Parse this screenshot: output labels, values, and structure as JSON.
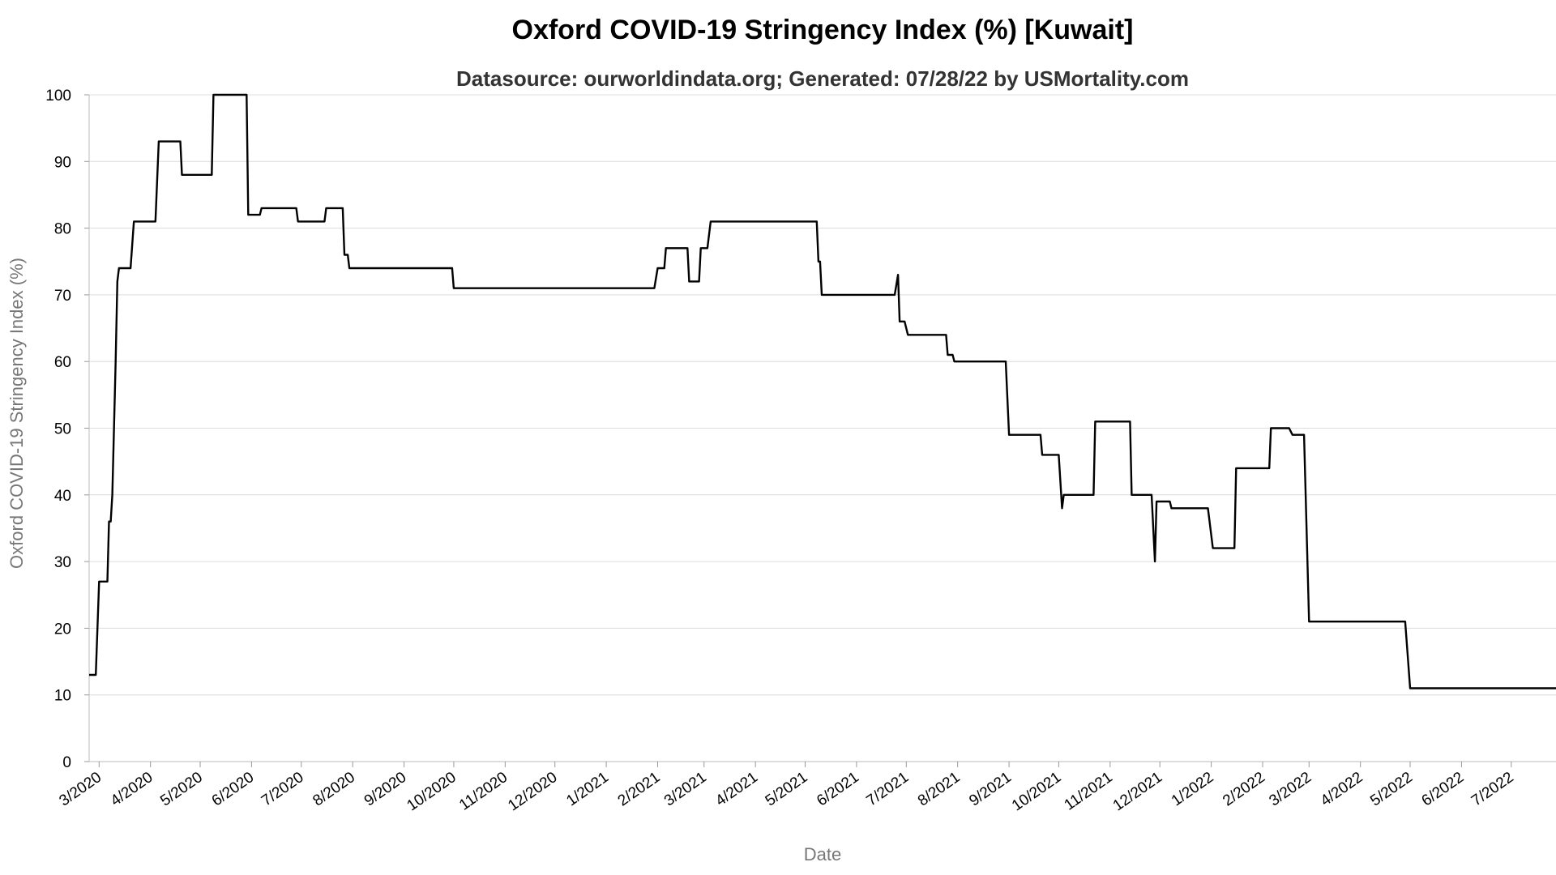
{
  "chart_data": {
    "type": "line",
    "title": "Oxford COVID-19 Stringency Index (%) [Kuwait]",
    "subtitle": "Datasource: ourworldindata.org; Generated: 07/28/22 by USMortality.com",
    "xlabel": "Date",
    "ylabel": "Oxford COVID-19 Stringency Index (%)",
    "ylim": [
      0,
      100
    ],
    "yticks": [
      0,
      10,
      20,
      30,
      40,
      50,
      60,
      70,
      80,
      90,
      100
    ],
    "xlim": [
      "2020-02-24",
      "2022-07-28"
    ],
    "xticks": [
      {
        "date": "2020-03-01",
        "label": "3/2020"
      },
      {
        "date": "2020-04-01",
        "label": "4/2020"
      },
      {
        "date": "2020-05-01",
        "label": "5/2020"
      },
      {
        "date": "2020-06-01",
        "label": "6/2020"
      },
      {
        "date": "2020-07-01",
        "label": "7/2020"
      },
      {
        "date": "2020-08-01",
        "label": "8/2020"
      },
      {
        "date": "2020-09-01",
        "label": "9/2020"
      },
      {
        "date": "2020-10-01",
        "label": "10/2020"
      },
      {
        "date": "2020-11-01",
        "label": "11/2020"
      },
      {
        "date": "2020-12-01",
        "label": "12/2020"
      },
      {
        "date": "2021-01-01",
        "label": "1/2021"
      },
      {
        "date": "2021-02-01",
        "label": "2/2021"
      },
      {
        "date": "2021-03-01",
        "label": "3/2021"
      },
      {
        "date": "2021-04-01",
        "label": "4/2021"
      },
      {
        "date": "2021-05-01",
        "label": "5/2021"
      },
      {
        "date": "2021-06-01",
        "label": "6/2021"
      },
      {
        "date": "2021-07-01",
        "label": "7/2021"
      },
      {
        "date": "2021-08-01",
        "label": "8/2021"
      },
      {
        "date": "2021-09-01",
        "label": "9/2021"
      },
      {
        "date": "2021-10-01",
        "label": "10/2021"
      },
      {
        "date": "2021-11-01",
        "label": "11/2021"
      },
      {
        "date": "2021-12-01",
        "label": "12/2021"
      },
      {
        "date": "2022-01-01",
        "label": "1/2022"
      },
      {
        "date": "2022-02-01",
        "label": "2/2022"
      },
      {
        "date": "2022-03-01",
        "label": "3/2022"
      },
      {
        "date": "2022-04-01",
        "label": "4/2022"
      },
      {
        "date": "2022-05-01",
        "label": "5/2022"
      },
      {
        "date": "2022-06-01",
        "label": "6/2022"
      },
      {
        "date": "2022-07-01",
        "label": "7/2022"
      }
    ],
    "grid": true,
    "line_color": "#000000",
    "series": [
      {
        "points": [
          [
            "2020-02-24",
            13
          ],
          [
            "2020-02-28",
            13
          ],
          [
            "2020-03-01",
            27
          ],
          [
            "2020-03-06",
            27
          ],
          [
            "2020-03-07",
            36
          ],
          [
            "2020-03-08",
            36
          ],
          [
            "2020-03-09",
            40
          ],
          [
            "2020-03-11",
            60
          ],
          [
            "2020-03-12",
            72
          ],
          [
            "2020-03-13",
            74
          ],
          [
            "2020-03-20",
            74
          ],
          [
            "2020-03-22",
            81
          ],
          [
            "2020-04-04",
            81
          ],
          [
            "2020-04-06",
            93
          ],
          [
            "2020-04-19",
            93
          ],
          [
            "2020-04-20",
            88
          ],
          [
            "2020-05-08",
            88
          ],
          [
            "2020-05-09",
            100
          ],
          [
            "2020-05-29",
            100
          ],
          [
            "2020-05-30",
            82
          ],
          [
            "2020-06-06",
            82
          ],
          [
            "2020-06-07",
            83
          ],
          [
            "2020-06-28",
            83
          ],
          [
            "2020-06-29",
            81
          ],
          [
            "2020-07-15",
            81
          ],
          [
            "2020-07-16",
            83
          ],
          [
            "2020-07-26",
            83
          ],
          [
            "2020-07-27",
            76
          ],
          [
            "2020-07-29",
            76
          ],
          [
            "2020-07-30",
            74
          ],
          [
            "2020-09-30",
            74
          ],
          [
            "2020-10-01",
            71
          ],
          [
            "2021-01-30",
            71
          ],
          [
            "2021-02-01",
            74
          ],
          [
            "2021-02-05",
            74
          ],
          [
            "2021-02-06",
            77
          ],
          [
            "2021-02-19",
            77
          ],
          [
            "2021-02-20",
            72
          ],
          [
            "2021-02-26",
            72
          ],
          [
            "2021-02-27",
            77
          ],
          [
            "2021-03-03",
            77
          ],
          [
            "2021-03-05",
            81
          ],
          [
            "2021-05-08",
            81
          ],
          [
            "2021-05-09",
            75
          ],
          [
            "2021-05-10",
            75
          ],
          [
            "2021-05-11",
            70
          ],
          [
            "2021-06-24",
            70
          ],
          [
            "2021-06-26",
            73
          ],
          [
            "2021-06-27",
            66
          ],
          [
            "2021-06-30",
            66
          ],
          [
            "2021-07-02",
            64
          ],
          [
            "2021-07-25",
            64
          ],
          [
            "2021-07-26",
            61
          ],
          [
            "2021-07-29",
            61
          ],
          [
            "2021-07-30",
            60
          ],
          [
            "2021-08-30",
            60
          ],
          [
            "2021-09-01",
            49
          ],
          [
            "2021-09-20",
            49
          ],
          [
            "2021-09-21",
            46
          ],
          [
            "2021-10-01",
            46
          ],
          [
            "2021-10-03",
            38
          ],
          [
            "2021-10-04",
            40
          ],
          [
            "2021-10-22",
            40
          ],
          [
            "2021-10-23",
            51
          ],
          [
            "2021-11-13",
            51
          ],
          [
            "2021-11-14",
            40
          ],
          [
            "2021-11-26",
            40
          ],
          [
            "2021-11-28",
            30
          ],
          [
            "2021-11-29",
            39
          ],
          [
            "2021-12-07",
            39
          ],
          [
            "2021-12-08",
            38
          ],
          [
            "2021-12-30",
            38
          ],
          [
            "2022-01-02",
            32
          ],
          [
            "2022-01-15",
            32
          ],
          [
            "2022-01-16",
            44
          ],
          [
            "2022-02-05",
            44
          ],
          [
            "2022-02-06",
            50
          ],
          [
            "2022-02-17",
            50
          ],
          [
            "2022-02-19",
            49
          ],
          [
            "2022-02-26",
            49
          ],
          [
            "2022-03-01",
            21
          ],
          [
            "2022-04-28",
            21
          ],
          [
            "2022-05-01",
            11
          ],
          [
            "2022-07-28",
            11
          ]
        ]
      }
    ]
  }
}
